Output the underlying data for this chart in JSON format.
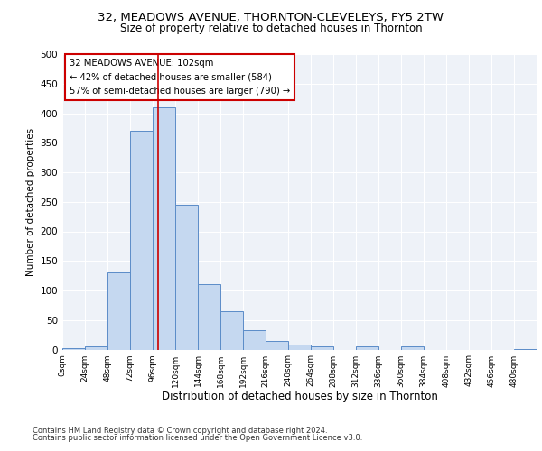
{
  "title1": "32, MEADOWS AVENUE, THORNTON-CLEVELEYS, FY5 2TW",
  "title2": "Size of property relative to detached houses in Thornton",
  "xlabel": "Distribution of detached houses by size in Thornton",
  "ylabel": "Number of detached properties",
  "bin_labels": [
    "0sqm",
    "24sqm",
    "48sqm",
    "72sqm",
    "96sqm",
    "120sqm",
    "144sqm",
    "168sqm",
    "192sqm",
    "216sqm",
    "240sqm",
    "264sqm",
    "288sqm",
    "312sqm",
    "336sqm",
    "360sqm",
    "384sqm",
    "408sqm",
    "432sqm",
    "456sqm",
    "480sqm"
  ],
  "bar_heights": [
    3,
    5,
    130,
    370,
    410,
    245,
    110,
    65,
    33,
    14,
    8,
    5,
    0,
    6,
    0,
    5,
    0,
    0,
    0,
    0,
    1
  ],
  "bar_color": "#c5d8f0",
  "bar_edge_color": "#5b8cc8",
  "property_value": 102,
  "property_label": "32 MEADOWS AVENUE: 102sqm",
  "annotation_line1": "← 42% of detached houses are smaller (584)",
  "annotation_line2": "57% of semi-detached houses are larger (790) →",
  "vline_color": "#cc0000",
  "annotation_box_color": "#ffffff",
  "annotation_box_edge": "#cc0000",
  "footer1": "Contains HM Land Registry data © Crown copyright and database right 2024.",
  "footer2": "Contains public sector information licensed under the Open Government Licence v3.0.",
  "ylim": [
    0,
    500
  ],
  "yticks": [
    0,
    50,
    100,
    150,
    200,
    250,
    300,
    350,
    400,
    450,
    500
  ],
  "bg_color": "#eef2f8",
  "fig_bg": "#ffffff"
}
